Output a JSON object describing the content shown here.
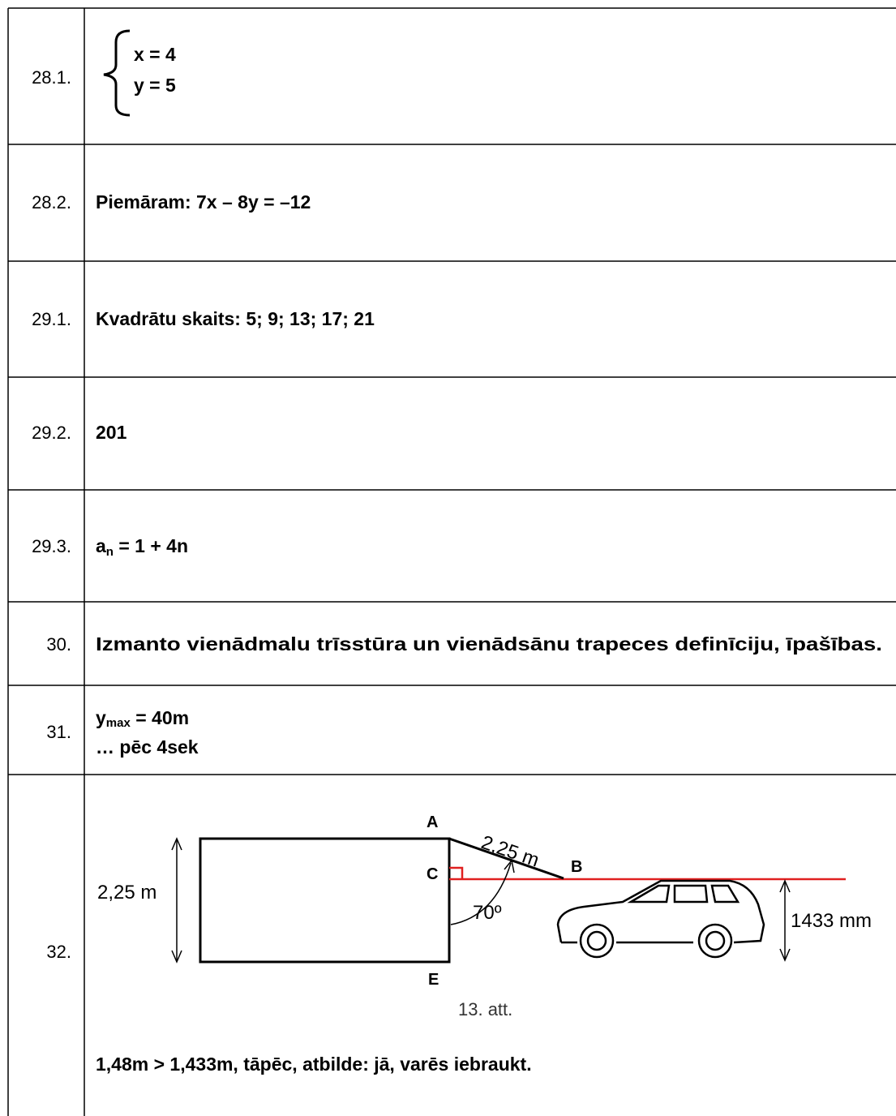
{
  "table": {
    "rows": [
      {
        "number": "28.1.",
        "lines": [
          "x = 4",
          "y = 5"
        ]
      },
      {
        "number": "28.2.",
        "text": "Piemāram: 7x – 8y = –12"
      },
      {
        "number": "29.1.",
        "text": "Kvadrātu skaits: 5; 9; 13; 17; 21"
      },
      {
        "number": "29.2.",
        "text": "201"
      },
      {
        "number": "29.3.",
        "base": "a",
        "sub": "n",
        "rest": " = 1 + 4n"
      },
      {
        "number": "30.",
        "text": "Izmanto vienādmalu trīsstūra un vienādsānu trapeces definīciju, īpašības."
      },
      {
        "number": "31.",
        "base": "y",
        "sub": "max",
        "rest": " = 40m",
        "line2": "… pēc 4sek"
      },
      {
        "number": "32.",
        "figure": {
          "point_a": "A",
          "point_b": "B",
          "point_c": "C",
          "point_e": "E",
          "height_label": "2,25 m",
          "slope_label": "2,25 m",
          "angle_label": "70º",
          "car_height_label": "1433 mm",
          "caption": "13. att."
        },
        "text": "1,48m > 1,433m, tāpēc, atbilde: jā, varēs iebraukt."
      }
    ]
  }
}
